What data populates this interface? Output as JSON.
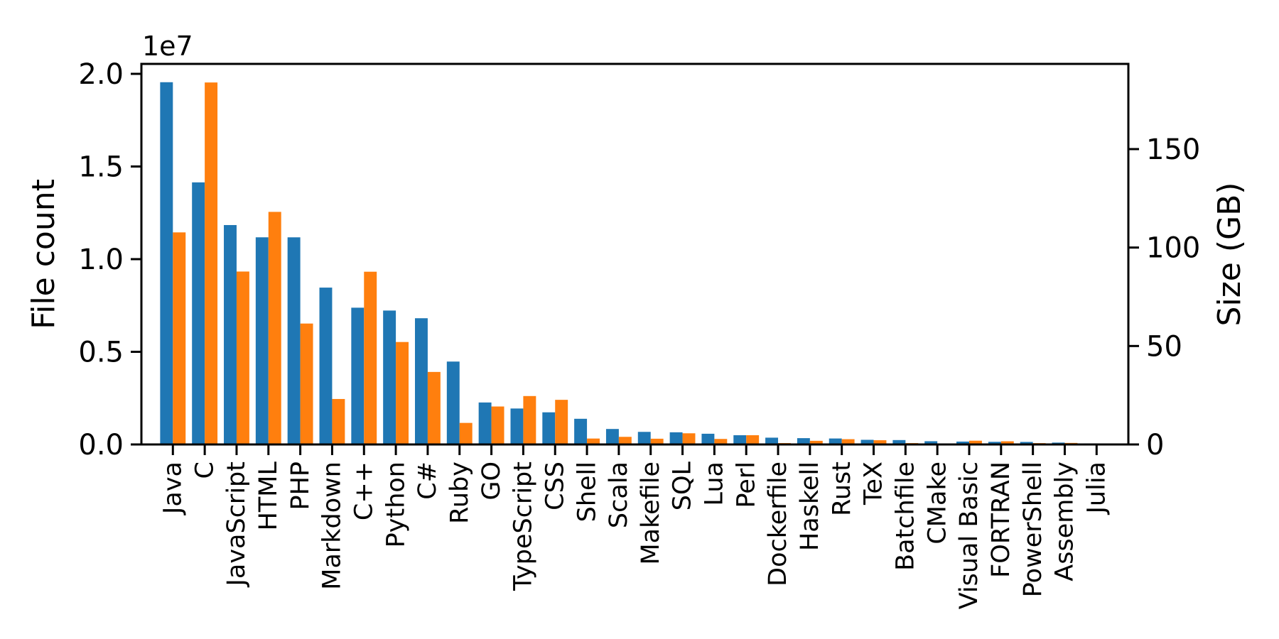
{
  "figure": {
    "background": "#ffffff"
  },
  "chart_data": {
    "type": "bar",
    "title": "",
    "grid": false,
    "legend": "none",
    "categories": [
      "Java",
      "C",
      "JavaScript",
      "HTML",
      "PHP",
      "Markdown",
      "C++",
      "Python",
      "C#",
      "Ruby",
      "GO",
      "TypeScript",
      "CSS",
      "Shell",
      "Scala",
      "Makefile",
      "SQL",
      "Lua",
      "Perl",
      "Dockerfile",
      "Haskell",
      "Rust",
      "TeX",
      "Batchfile",
      "CMake",
      "Visual Basic",
      "FORTRAN",
      "PowerShell",
      "Assembly",
      "Julia"
    ],
    "series": [
      {
        "name": "File count",
        "axis": "left",
        "color": "#1f77b4",
        "values": [
          19548190,
          14143113,
          11839883,
          11178557,
          11177610,
          8464626,
          7380520,
          7226626,
          6811652,
          4473331,
          2265436,
          1940406,
          1734406,
          1385648,
          835755,
          679430,
          656671,
          578554,
          497949,
          366505,
          340623,
          322431,
          251015,
          236945,
          175282,
          155652,
          142038,
          136846,
          101699,
          58317
        ]
      },
      {
        "name": "Size (GB)",
        "axis": "right",
        "color": "#ff7f0e",
        "values": [
          107.7,
          183.83,
          87.82,
          118.12,
          61.41,
          23.09,
          87.73,
          52.03,
          36.83,
          10.95,
          19.28,
          24.59,
          22.67,
          3.01,
          3.87,
          2.92,
          5.67,
          2.81,
          4.7,
          0.71,
          1.85,
          2.68,
          2.15,
          0.7,
          0.54,
          1.91,
          1.62,
          0.69,
          0.78,
          0.29
        ]
      }
    ],
    "left_axis": {
      "label": "File count",
      "color": "#1f77b4",
      "multiplier": "1e7",
      "tick_values": [
        0,
        5000000,
        10000000,
        15000000,
        20000000
      ],
      "tick_labels": [
        "0.0",
        "0.5",
        "1.0",
        "1.5",
        "2.0"
      ],
      "ylim": [
        0,
        20575000
      ]
    },
    "right_axis": {
      "label": "Size (GB)",
      "color": "#ff7f0e",
      "tick_values": [
        0,
        50,
        100,
        150
      ],
      "tick_labels": [
        "0",
        "50",
        "100",
        "150"
      ],
      "ylim": [
        0,
        193.6
      ]
    }
  }
}
